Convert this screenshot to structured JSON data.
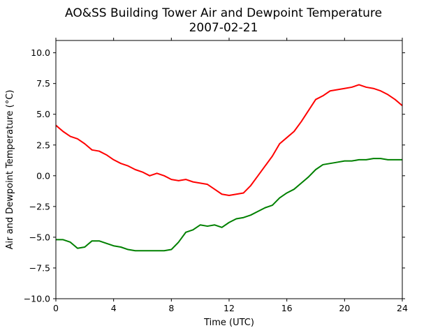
{
  "chart_data": {
    "type": "line",
    "title": "AO&SS Building Tower Air and Dewpoint Temperature",
    "subtitle": "2007-02-21",
    "xlabel": "Time (UTC)",
    "ylabel": "Air and Dewpoint Temperature (°C)",
    "xlim": [
      0,
      24
    ],
    "ylim": [
      -10,
      11
    ],
    "xticks": [
      0,
      4,
      8,
      12,
      16,
      20,
      24
    ],
    "xtick_labels": [
      "0",
      "4",
      "8",
      "12",
      "16",
      "20",
      "24"
    ],
    "yticks": [
      -10,
      -7.5,
      -5,
      -2.5,
      0,
      2.5,
      5,
      7.5,
      10
    ],
    "ytick_labels": [
      "−10.0",
      "−7.5",
      "−5.0",
      "−2.5",
      "0.0",
      "2.5",
      "5.0",
      "7.5",
      "10.0"
    ],
    "grid": false,
    "series": [
      {
        "color": "#ff0000",
        "x": [
          0,
          0.5,
          1,
          1.5,
          2,
          2.5,
          3,
          3.5,
          4,
          4.5,
          5,
          5.5,
          6,
          6.5,
          7,
          7.5,
          8,
          8.5,
          9,
          9.5,
          10,
          10.5,
          11,
          11.5,
          12,
          12.5,
          13,
          13.5,
          14,
          14.5,
          15,
          15.5,
          16,
          16.5,
          17,
          17.5,
          18,
          18.5,
          19,
          19.5,
          20,
          20.5,
          21,
          21.5,
          22,
          22.5,
          23,
          23.5,
          24
        ],
        "values": [
          4.1,
          3.6,
          3.2,
          3.0,
          2.6,
          2.1,
          2.0,
          1.7,
          1.3,
          1.0,
          0.8,
          0.5,
          0.3,
          0.0,
          0.2,
          0.0,
          -0.3,
          -0.4,
          -0.3,
          -0.5,
          -0.6,
          -0.7,
          -1.1,
          -1.5,
          -1.6,
          -1.5,
          -1.4,
          -0.8,
          0.0,
          0.8,
          1.6,
          2.6,
          3.1,
          3.6,
          4.4,
          5.3,
          6.2,
          6.5,
          6.9,
          7.0,
          7.1,
          7.2,
          7.4,
          7.2,
          7.1,
          6.9,
          6.6,
          6.2,
          5.7
        ]
      },
      {
        "color": "#008000",
        "x": [
          0,
          0.5,
          1,
          1.5,
          2,
          2.5,
          3,
          3.5,
          4,
          4.5,
          5,
          5.5,
          6,
          6.5,
          7,
          7.5,
          8,
          8.5,
          9,
          9.5,
          10,
          10.5,
          11,
          11.5,
          12,
          12.5,
          13,
          13.5,
          14,
          14.5,
          15,
          15.5,
          16,
          16.5,
          17,
          17.5,
          18,
          18.5,
          19,
          19.5,
          20,
          20.5,
          21,
          21.5,
          22,
          22.5,
          23,
          23.5,
          24
        ],
        "values": [
          -5.2,
          -5.2,
          -5.4,
          -5.9,
          -5.8,
          -5.3,
          -5.3,
          -5.5,
          -5.7,
          -5.8,
          -6.0,
          -6.1,
          -6.1,
          -6.1,
          -6.1,
          -6.1,
          -6.0,
          -5.4,
          -4.6,
          -4.4,
          -4.0,
          -4.1,
          -4.0,
          -4.2,
          -3.8,
          -3.5,
          -3.4,
          -3.2,
          -2.9,
          -2.6,
          -2.4,
          -1.8,
          -1.4,
          -1.1,
          -0.6,
          -0.1,
          0.5,
          0.9,
          1.0,
          1.1,
          1.2,
          1.2,
          1.3,
          1.3,
          1.4,
          1.4,
          1.3,
          1.3,
          1.3
        ]
      }
    ]
  }
}
